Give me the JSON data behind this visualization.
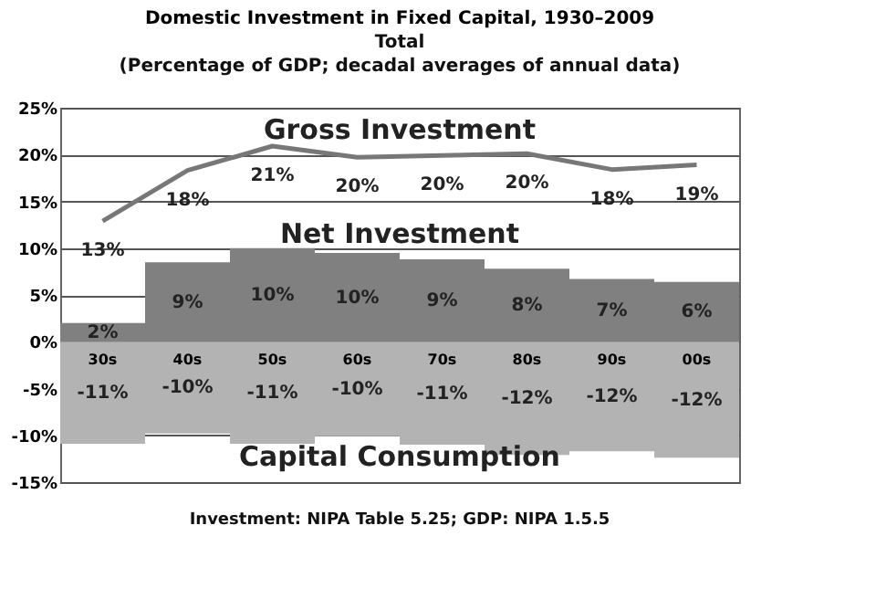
{
  "chart_data": {
    "type": "bar",
    "title": "Domestic Investment in Fixed Capital, 1930–2009",
    "subtitle": "Total",
    "annotations": [
      "(Percentage of GDP; decadal averages of annual data)",
      "Investment: NIPA Table 5.25; GDP: NIPA 1.5.5"
    ],
    "categories": [
      "30s",
      "40s",
      "50s",
      "60s",
      "70s",
      "80s",
      "90s",
      "00s"
    ],
    "series": [
      {
        "name": "Gross Investment",
        "type": "line",
        "color": "#777777",
        "values": [
          12.9,
          18.3,
          20.9,
          19.7,
          19.9,
          20.1,
          18.4,
          18.9
        ],
        "value_labels": [
          "13%",
          "18%",
          "21%",
          "20%",
          "20%",
          "20%",
          "18%",
          "19%"
        ]
      },
      {
        "name": "Net Investment",
        "color": "#808080",
        "values": [
          2.0,
          8.5,
          10.0,
          9.5,
          8.8,
          7.8,
          6.7,
          6.4
        ],
        "value_labels": [
          "2%",
          "9%",
          "10%",
          "10%",
          "9%",
          "8%",
          "7%",
          "6%"
        ]
      },
      {
        "name": "Capital Consumption",
        "color": "#b3b3b3",
        "values": [
          -10.9,
          -9.8,
          -10.9,
          -10.1,
          -11.0,
          -12.1,
          -11.7,
          -12.4
        ],
        "value_labels": [
          "-11%",
          "-10%",
          "-11%",
          "-10%",
          "-11%",
          "-12%",
          "-12%",
          "-12%"
        ]
      }
    ],
    "ylim": [
      -15,
      25
    ],
    "yticks": [
      {
        "value": -15,
        "label": "-15%"
      },
      {
        "value": -10,
        "label": "-10%"
      },
      {
        "value": -5,
        "label": "-5%"
      },
      {
        "value": 0,
        "label": "0%"
      },
      {
        "value": 5,
        "label": "5%"
      },
      {
        "value": 10,
        "label": "10%"
      },
      {
        "value": 15,
        "label": "15%"
      },
      {
        "value": 20,
        "label": "20%"
      },
      {
        "value": 25,
        "label": "25%"
      }
    ],
    "grid": "y",
    "stacked": true
  }
}
